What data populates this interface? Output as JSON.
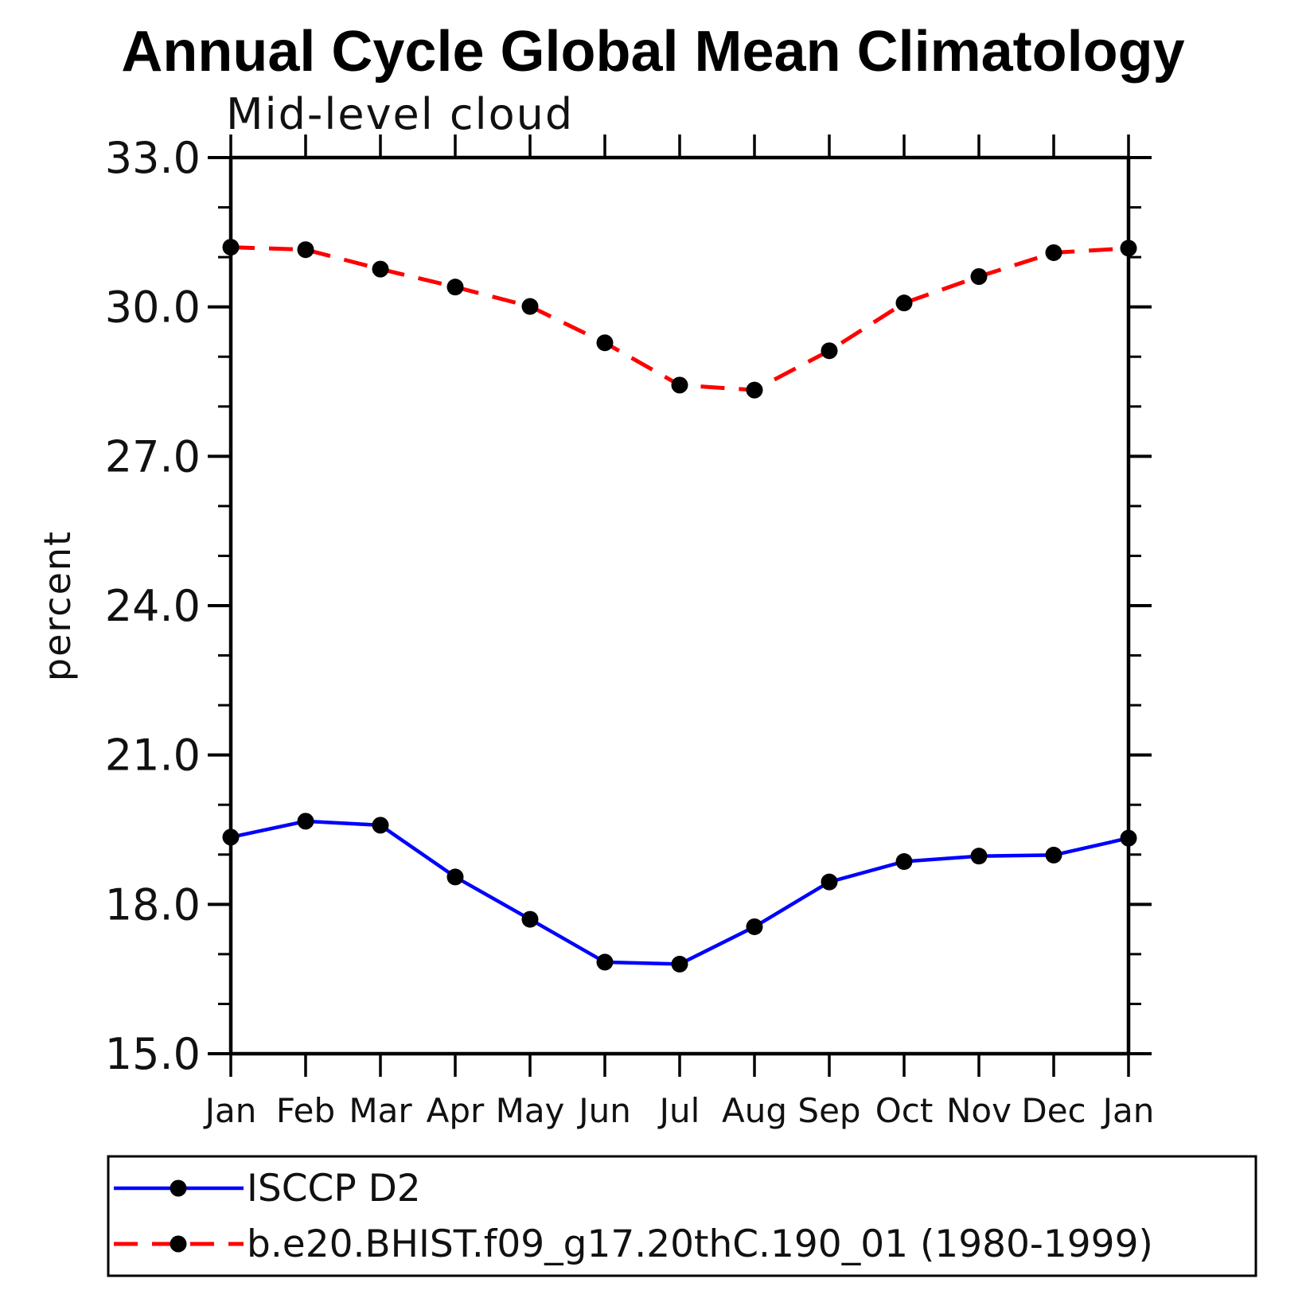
{
  "page": {
    "title": "Annual Cycle Global Mean Climatology",
    "subtitle": "Mid-level cloud"
  },
  "chart_data": {
    "type": "line",
    "title": "Annual Cycle Global Mean Climatology",
    "subtitle": "Mid-level cloud",
    "xlabel": "",
    "ylabel": "percent",
    "categories": [
      "Jan",
      "Feb",
      "Mar",
      "Apr",
      "May",
      "Jun",
      "Jul",
      "Aug",
      "Sep",
      "Oct",
      "Nov",
      "Dec",
      "Jan"
    ],
    "ylim": [
      15.0,
      33.0
    ],
    "y_major_step": 3.0,
    "y_minor_step": 1.0,
    "y_major_tick_labels": [
      "33.0",
      "30.0",
      "27.0",
      "24.0",
      "21.0",
      "18.0",
      "15.0"
    ],
    "grid": false,
    "legend_position": "bottom-left-box",
    "marker": "filled-circle",
    "marker_color": "#000000",
    "series": [
      {
        "name": "ISCCP D2",
        "color": "#0000ff",
        "line_style": "solid",
        "values": [
          19.35,
          19.67,
          19.59,
          18.55,
          17.7,
          16.84,
          16.8,
          17.55,
          18.45,
          18.86,
          18.97,
          18.99,
          19.33
        ]
      },
      {
        "name": "b.e20.BHIST.f09_g17.20thC.190_01 (1980-1999)",
        "color": "#ff0000",
        "line_style": "dashed",
        "values": [
          31.2,
          31.15,
          30.76,
          30.4,
          30.01,
          29.28,
          28.43,
          28.33,
          29.12,
          30.08,
          30.61,
          31.09,
          31.18
        ]
      }
    ]
  }
}
